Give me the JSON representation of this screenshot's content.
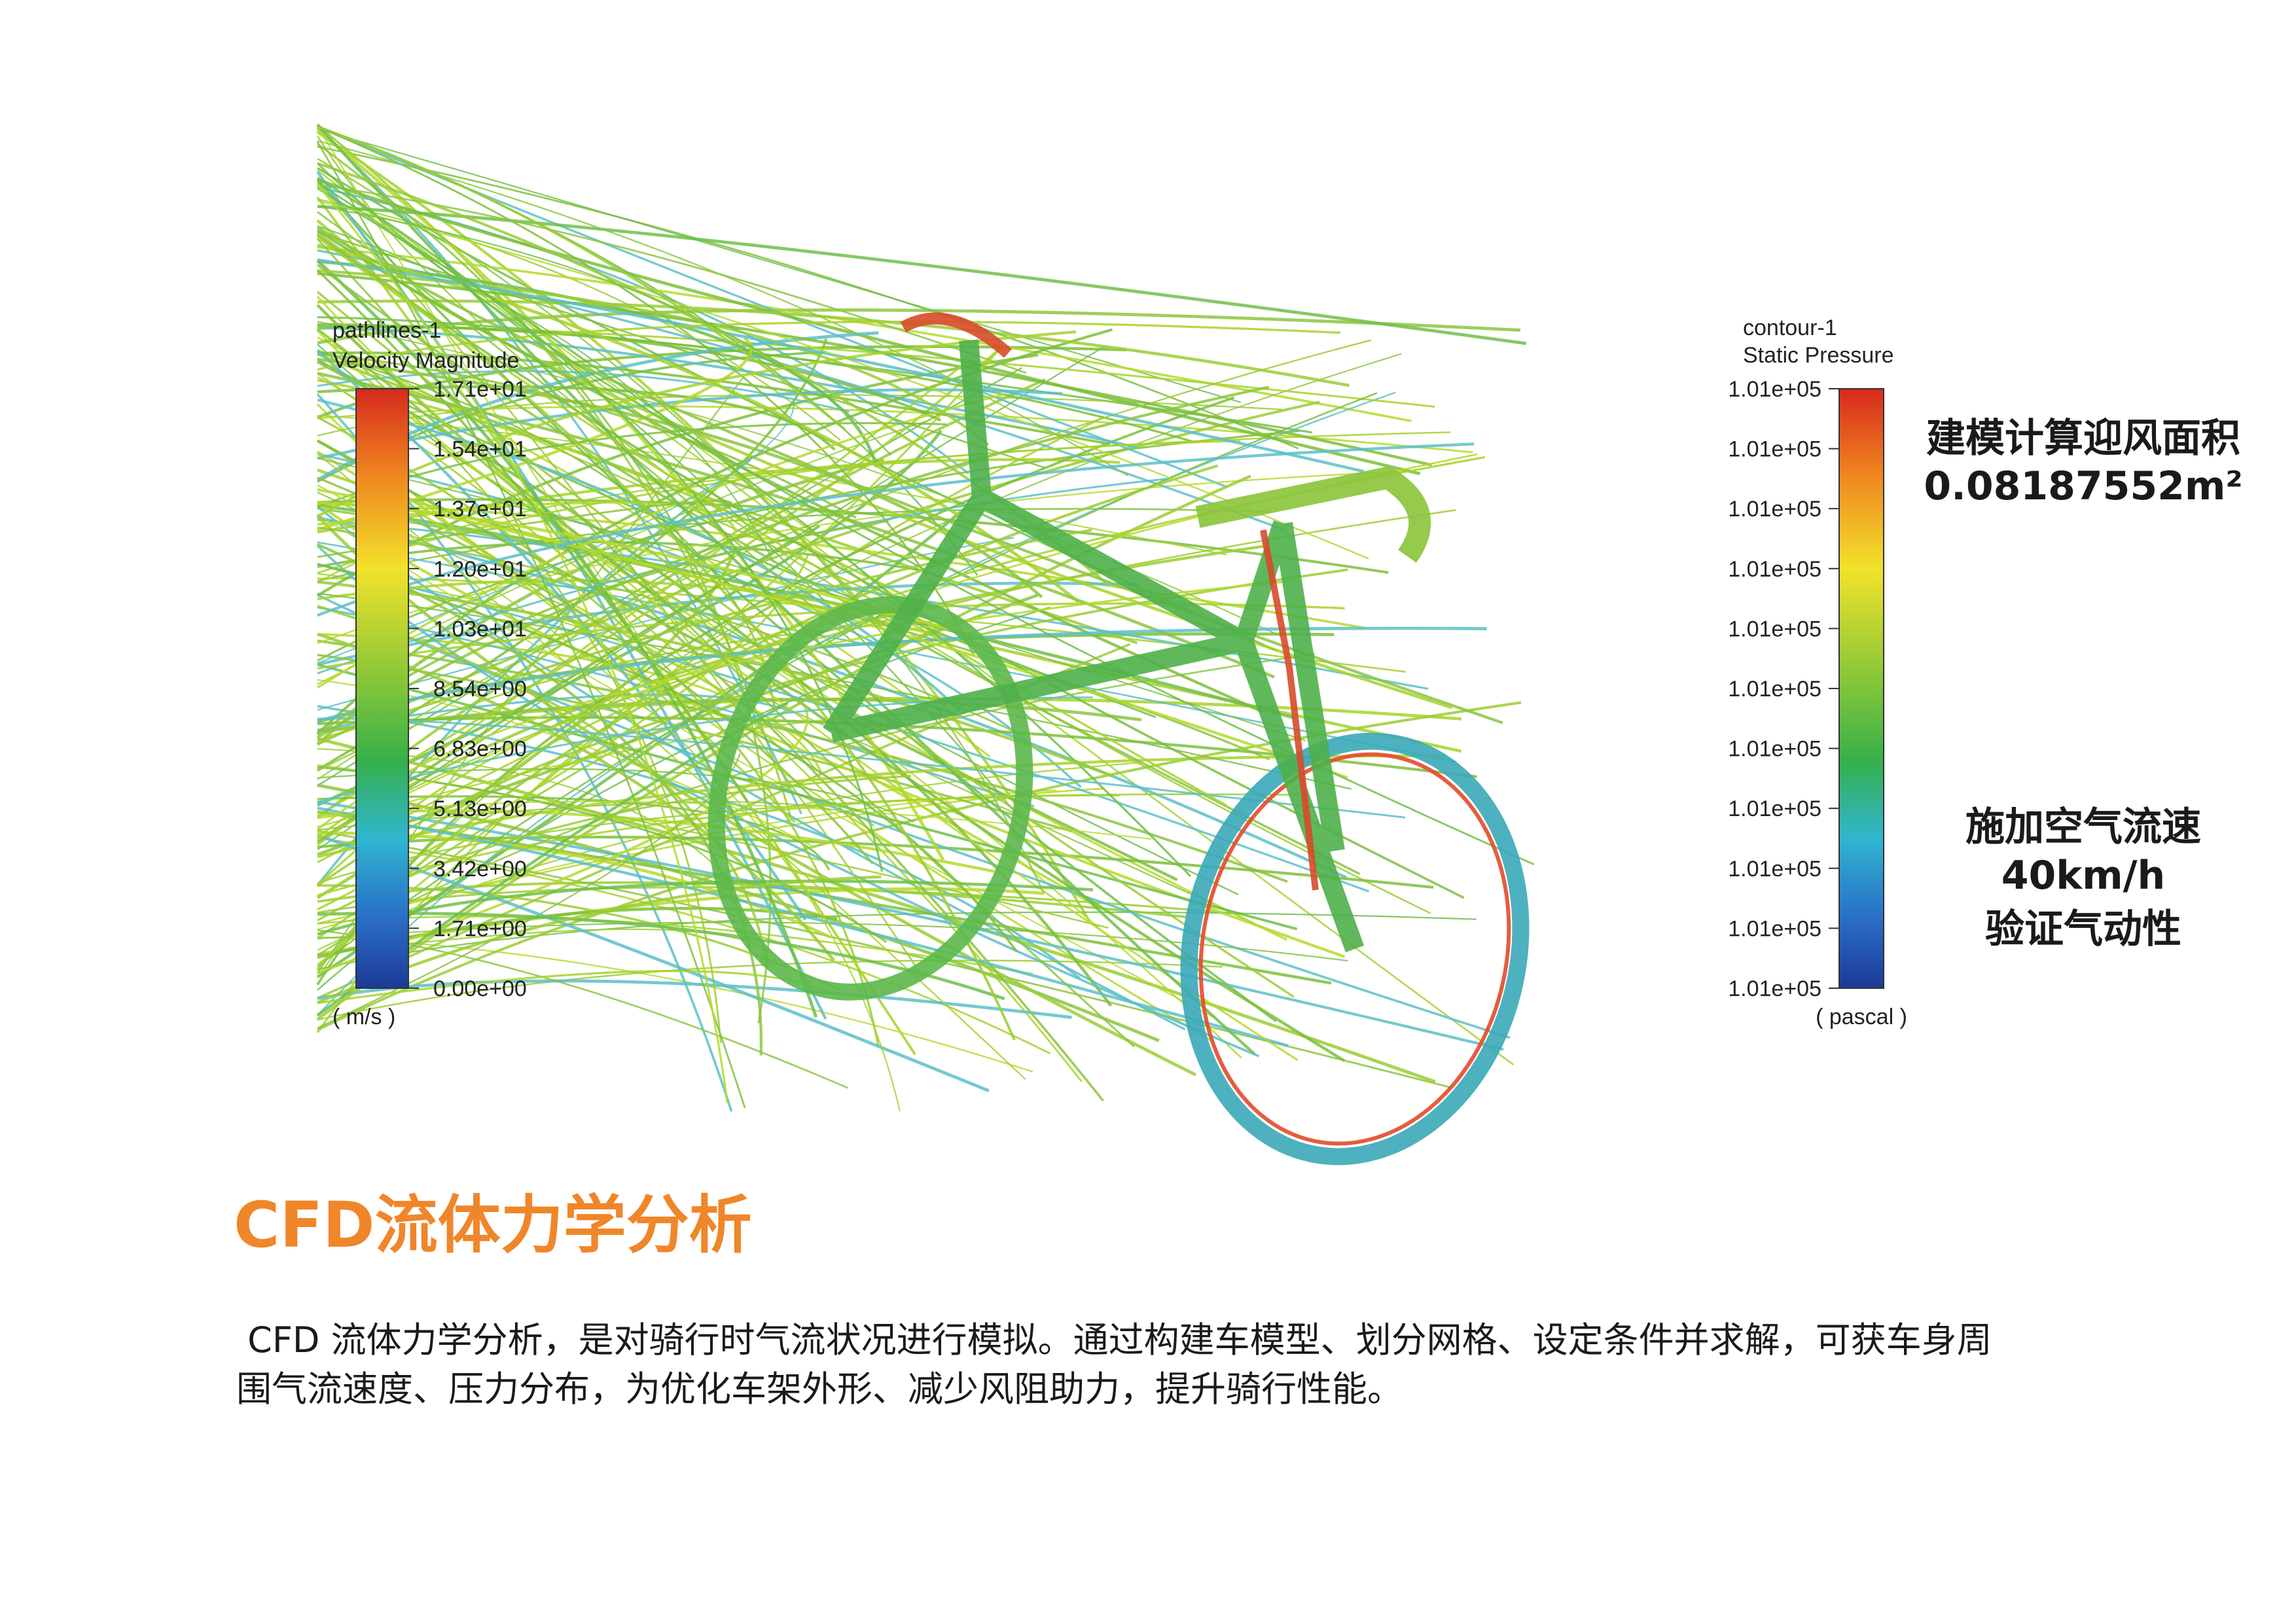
{
  "velocity_legend": {
    "title": "pathlines-1",
    "subtitle": "Velocity Magnitude",
    "ticks": [
      "1.71e+01",
      "1.54e+01",
      "1.37e+01",
      "1.20e+01",
      "1.03e+01",
      "8.54e+00",
      "6.83e+00",
      "5.13e+00",
      "3.42e+00",
      "1.71e+00",
      "0.00e+00"
    ],
    "unit": "( m/s )"
  },
  "pressure_legend": {
    "title": "contour-1",
    "subtitle": "Static Pressure",
    "ticks": [
      "1.01e+05",
      "1.01e+05",
      "1.01e+05",
      "1.01e+05",
      "1.01e+05",
      "1.01e+05",
      "1.01e+05",
      "1.01e+05",
      "1.01e+05",
      "1.01e+05",
      "1.01e+05"
    ],
    "unit": "( pascal )"
  },
  "annotations": {
    "area_label": "建模计算迎风面积",
    "area_value": "0.08187552m²",
    "flow_lines": [
      "施加空气流速",
      "40km/h",
      "验证气动性"
    ]
  },
  "heading": "CFD流体力学分析",
  "paragraph": [
    " CFD 流体力学分析，是对骑行时气流状况进行模拟。通过构建车模型、划分网格、设定条件并求解，可获车身周",
    "围气流速度、压力分布，为优化车架外形、减少风阻助力，提升骑行性能。"
  ]
}
